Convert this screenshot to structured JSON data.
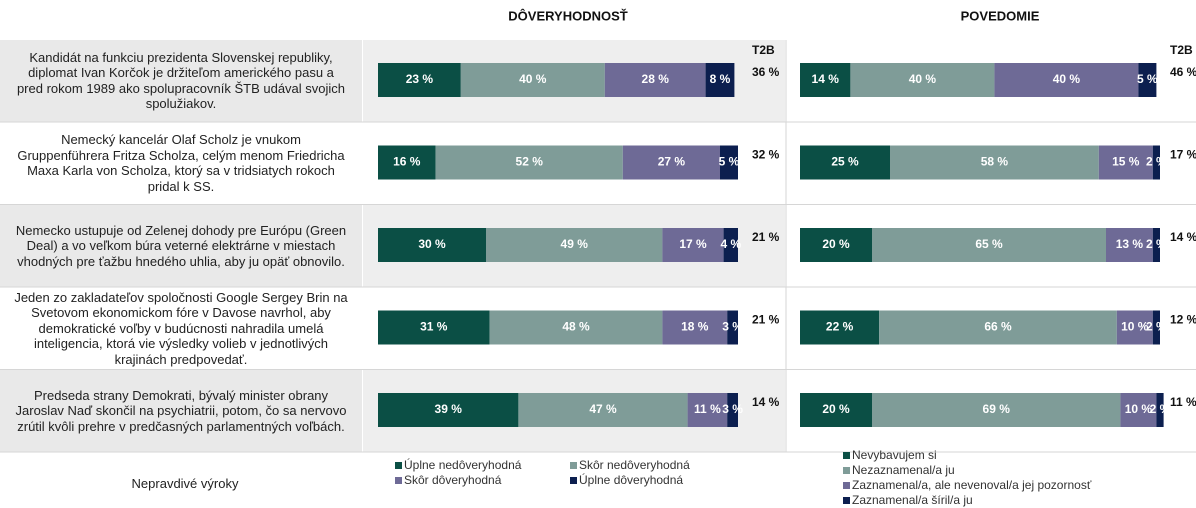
{
  "row_header": "Nepravdivé výroky",
  "chart_data": [
    {
      "type": "stacked_bar_h",
      "title": "DÔVERYHODNOSŤ",
      "categories": [
        "Kandidát na funkciu prezidenta Slovenskej republiky, diplomat Ivan Korčok je držiteľom amerického pasu a pred rokom 1989 ako spolupracovník ŠTB udával svojich spolužiakov.",
        "Nemecký kancelár Olaf Scholz je vnukom Gruppenführera Fritza Scholza, celým menom Friedricha Maxa Karla von Scholza, ktorý sa v tridsiatych rokoch pridal k SS.",
        "Nemecko ustupuje od Zelenej dohody pre Európu (Green Deal) a vo veľkom búra veterné elektrárne v miestach vhodných pre ťažbu hnedého uhlia, aby ju opäť obnovilo.",
        "Jeden zo zakladateľov spoločnosti Google Sergey Brin na Svetovom ekonomickom fóre v Davose navrhol, aby demokratické voľby v budúcnosti nahradila umelá inteligencia, ktorá vie výsledky volieb v jednotlivých krajinách predpovedať.",
        "Predseda strany Demokrati, bývalý minister obrany Jaroslav Naď skončil na psychiatrii, potom, čo sa nervovo zrútil kvôli prehre v predčasných parlamentných voľbách."
      ],
      "xlim": [
        0,
        100
      ],
      "series": [
        {
          "name": "Úplne nedôveryhodná",
          "color": "#0b4f45",
          "values": [
            23,
            16,
            30,
            31,
            39
          ],
          "value_labels": [
            "23 %",
            "16 %",
            "30 %",
            "31 %",
            "39 %"
          ]
        },
        {
          "name": "Skôr nedôveryhodná",
          "color": "#7f9c98",
          "values": [
            40,
            52,
            49,
            48,
            47
          ],
          "value_labels": [
            "40 %",
            "52 %",
            "49 %",
            "48 %",
            "47 %"
          ]
        },
        {
          "name": "Skôr dôveryhodná",
          "color": "#6e6a96",
          "values": [
            28,
            27,
            17,
            18,
            11
          ],
          "value_labels": [
            "28 %",
            "27 %",
            "17 %",
            "18 %",
            "11 %"
          ]
        },
        {
          "name": "Úplne dôveryhodná",
          "color": "#0c1f4f",
          "values": [
            8,
            5,
            4,
            3,
            3
          ],
          "value_labels": [
            "8 %",
            "5 %",
            "4 %",
            "3 %",
            "3 %"
          ]
        }
      ],
      "t2b_label": "T2B",
      "t2b_values": [
        36,
        32,
        21,
        21,
        14
      ],
      "t2b_value_labels": [
        "36 %",
        "32 %",
        "21 %",
        "21 %",
        "14 %"
      ]
    },
    {
      "type": "stacked_bar_h",
      "title": "POVEDOMIE",
      "xlim": [
        0,
        100
      ],
      "series": [
        {
          "name": "Nevybavujem si",
          "color": "#0b4f45",
          "values": [
            14,
            25,
            20,
            22,
            20
          ],
          "value_labels": [
            "14 %",
            "25 %",
            "20 %",
            "22 %",
            "20 %"
          ]
        },
        {
          "name": "Nezaznamenal/a ju",
          "color": "#7f9c98",
          "values": [
            40,
            58,
            65,
            66,
            69
          ],
          "value_labels": [
            "40 %",
            "58 %",
            "65 %",
            "66 %",
            "69 %"
          ]
        },
        {
          "name": "Zaznamenal/a, ale nevenoval/a jej pozornosť",
          "color": "#6e6a96",
          "values": [
            40,
            15,
            13,
            10,
            10
          ],
          "value_labels": [
            "40 %",
            "15 %",
            "13 %",
            "10 %",
            "10 %"
          ]
        },
        {
          "name": "Zaznamenal/a šíril/a ju",
          "color": "#0c1f4f",
          "values": [
            5,
            2,
            2,
            2,
            2
          ],
          "value_labels": [
            "5 %",
            "2 %",
            "2 %",
            "2 %",
            "2 %"
          ]
        }
      ],
      "t2b_label": "T2B",
      "t2b_values": [
        46,
        17,
        14,
        12,
        11
      ],
      "t2b_value_labels": [
        "46 %",
        "17 %",
        "14 %",
        "12 %",
        "11 %"
      ]
    }
  ]
}
